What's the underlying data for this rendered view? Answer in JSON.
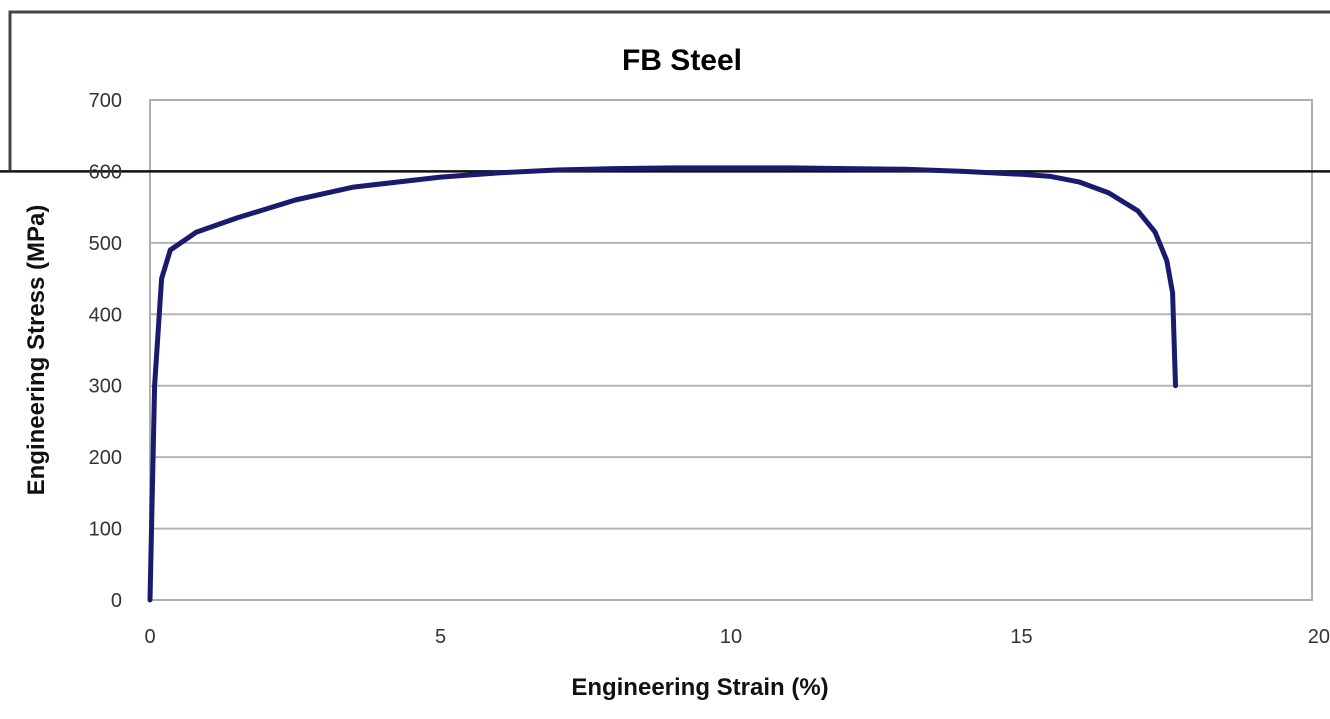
{
  "chart_data": {
    "type": "line",
    "title": "FB Steel",
    "xlabel": "Engineering Strain (%)",
    "ylabel": "Engineering Stress (MPa)",
    "xlim": [
      0,
      20
    ],
    "ylim": [
      0,
      700
    ],
    "x_ticks": [
      0,
      5,
      10,
      15,
      20
    ],
    "y_ticks": [
      0,
      100,
      200,
      300,
      400,
      500,
      600,
      700
    ],
    "x_tick_labels": [
      "0",
      "5",
      "10",
      "15",
      "20"
    ],
    "y_tick_labels": [
      "0",
      "100",
      "200",
      "300",
      "400",
      "500",
      "600",
      "700"
    ],
    "grid": "horizontal",
    "legend": "none",
    "reference_line": {
      "y": 600
    },
    "series": [
      {
        "color": "#1a1a6e",
        "points": [
          [
            0.0,
            0
          ],
          [
            0.08,
            300
          ],
          [
            0.2,
            450
          ],
          [
            0.35,
            490
          ],
          [
            0.8,
            515
          ],
          [
            1.5,
            535
          ],
          [
            2.5,
            560
          ],
          [
            3.5,
            578
          ],
          [
            5.0,
            592
          ],
          [
            6.0,
            598
          ],
          [
            7.0,
            602
          ],
          [
            8.0,
            604
          ],
          [
            9.0,
            605
          ],
          [
            10.0,
            605
          ],
          [
            11.0,
            605
          ],
          [
            12.0,
            604
          ],
          [
            13.0,
            603
          ],
          [
            14.0,
            600
          ],
          [
            15.0,
            596
          ],
          [
            15.5,
            593
          ],
          [
            16.0,
            585
          ],
          [
            16.5,
            570
          ],
          [
            17.0,
            545
          ],
          [
            17.3,
            515
          ],
          [
            17.5,
            475
          ],
          [
            17.6,
            430
          ],
          [
            17.65,
            300
          ]
        ]
      }
    ]
  }
}
